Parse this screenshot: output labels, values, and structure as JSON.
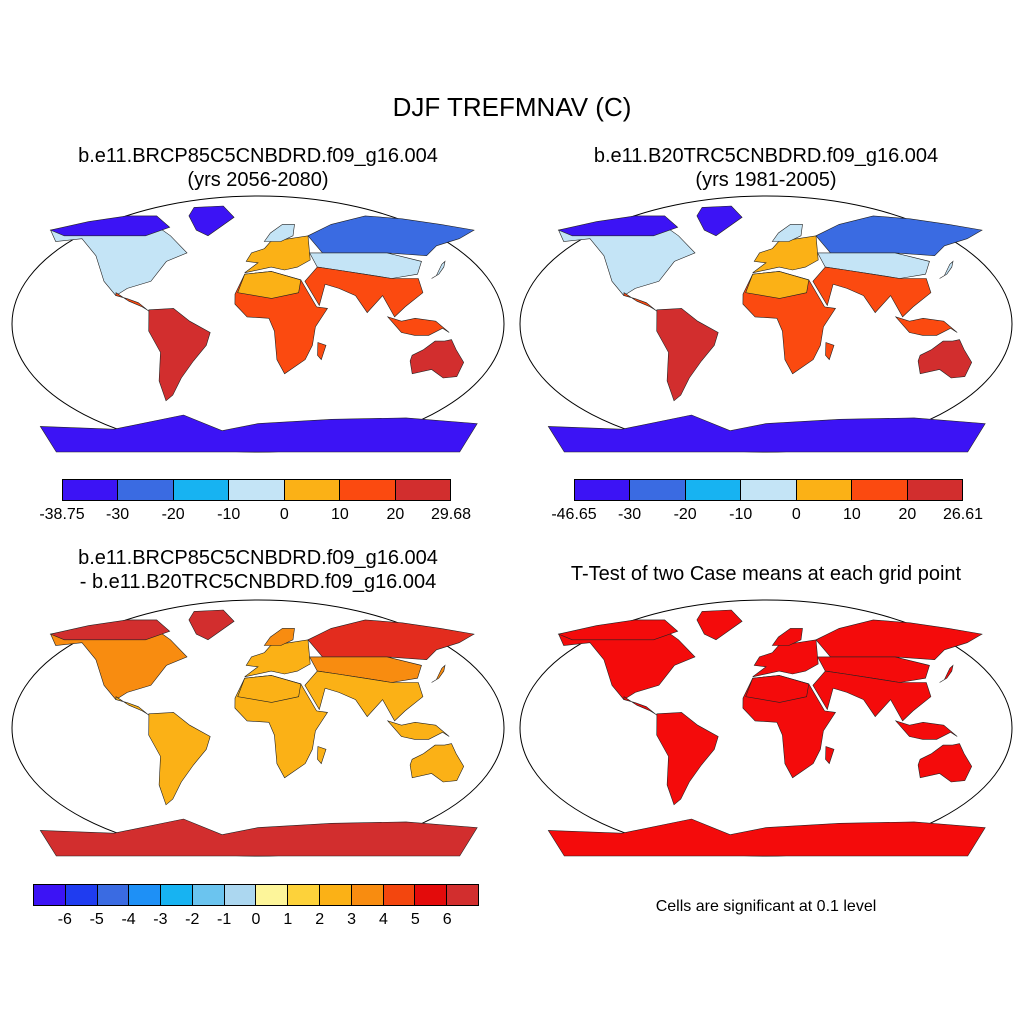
{
  "title": "DJF TREFMNAV (C)",
  "panels": {
    "p1": {
      "title_line1": "b.e11.BRCP85C5CNBDRD.f09_g16.004",
      "title_line2": "(yrs 2056-2080)",
      "colorbar": {
        "colors": [
          "#3c13f5",
          "#3a6be2",
          "#17b3f2",
          "#c4e4f6",
          "#fbb116",
          "#fb4a10",
          "#d22e2e"
        ],
        "ticks": [
          "-38.75",
          "-30",
          "-20",
          "-10",
          "0",
          "10",
          "20",
          "29.68"
        ]
      }
    },
    "p2": {
      "title_line1": "b.e11.B20TRC5CNBDRD.f09_g16.004",
      "title_line2": "(yrs 1981-2005)",
      "colorbar": {
        "colors": [
          "#3c13f5",
          "#3a6be2",
          "#17b3f2",
          "#c4e4f6",
          "#fbb116",
          "#fb4a10",
          "#d22e2e"
        ],
        "ticks": [
          "-46.65",
          "-30",
          "-20",
          "-10",
          "0",
          "10",
          "20",
          "26.61"
        ]
      }
    },
    "p3": {
      "title_line1": "b.e11.BRCP85C5CNBDRD.f09_g16.004",
      "title_line2": "- b.e11.B20TRC5CNBDRD.f09_g16.004",
      "colorbar": {
        "colors": [
          "#3c13f5",
          "#1f3cf0",
          "#3a6be2",
          "#1e90f6",
          "#17b3f2",
          "#6bc4ef",
          "#acd7f0",
          "#fdf59a",
          "#fdd23a",
          "#fbb116",
          "#f88c10",
          "#f3460e",
          "#e30b0b",
          "#d22e2e"
        ],
        "ticks": [
          "-6",
          "-5",
          "-4",
          "-3",
          "-2",
          "-1",
          "0",
          "1",
          "2",
          "3",
          "4",
          "5",
          "6"
        ]
      }
    },
    "p4": {
      "title_line1": "T-Test of two Case means at each grid point",
      "note": "Cells are significant at 0.1 level",
      "fill_color": "#f40b0b"
    }
  },
  "map_palettes": {
    "p1": {
      "cold": "#3c13f5",
      "cool": "#3a6be2",
      "mild": "#17b3f2",
      "chill": "#c4e4f6",
      "warm": "#fbb116",
      "hot": "#fb4a10",
      "hotter": "#d22e2e"
    },
    "p2": {
      "cold": "#3c13f5",
      "cool": "#3a6be2",
      "mild": "#17b3f2",
      "chill": "#c4e4f6",
      "warm": "#fbb116",
      "hot": "#fb4a10",
      "hotter": "#d22e2e"
    },
    "p3": {
      "cold": "#d22e2e",
      "cool": "#e32c1e",
      "mild": "#f3460e",
      "chill": "#f88c10",
      "warm": "#fbb116",
      "hot": "#fbb116",
      "hotter": "#fbb116"
    },
    "p4": {
      "cold": "#f40b0b",
      "cool": "#f40b0b",
      "mild": "#f40b0b",
      "chill": "#f40b0b",
      "warm": "#f40b0b",
      "hot": "#f40b0b",
      "hotter": "#f40b0b"
    }
  }
}
